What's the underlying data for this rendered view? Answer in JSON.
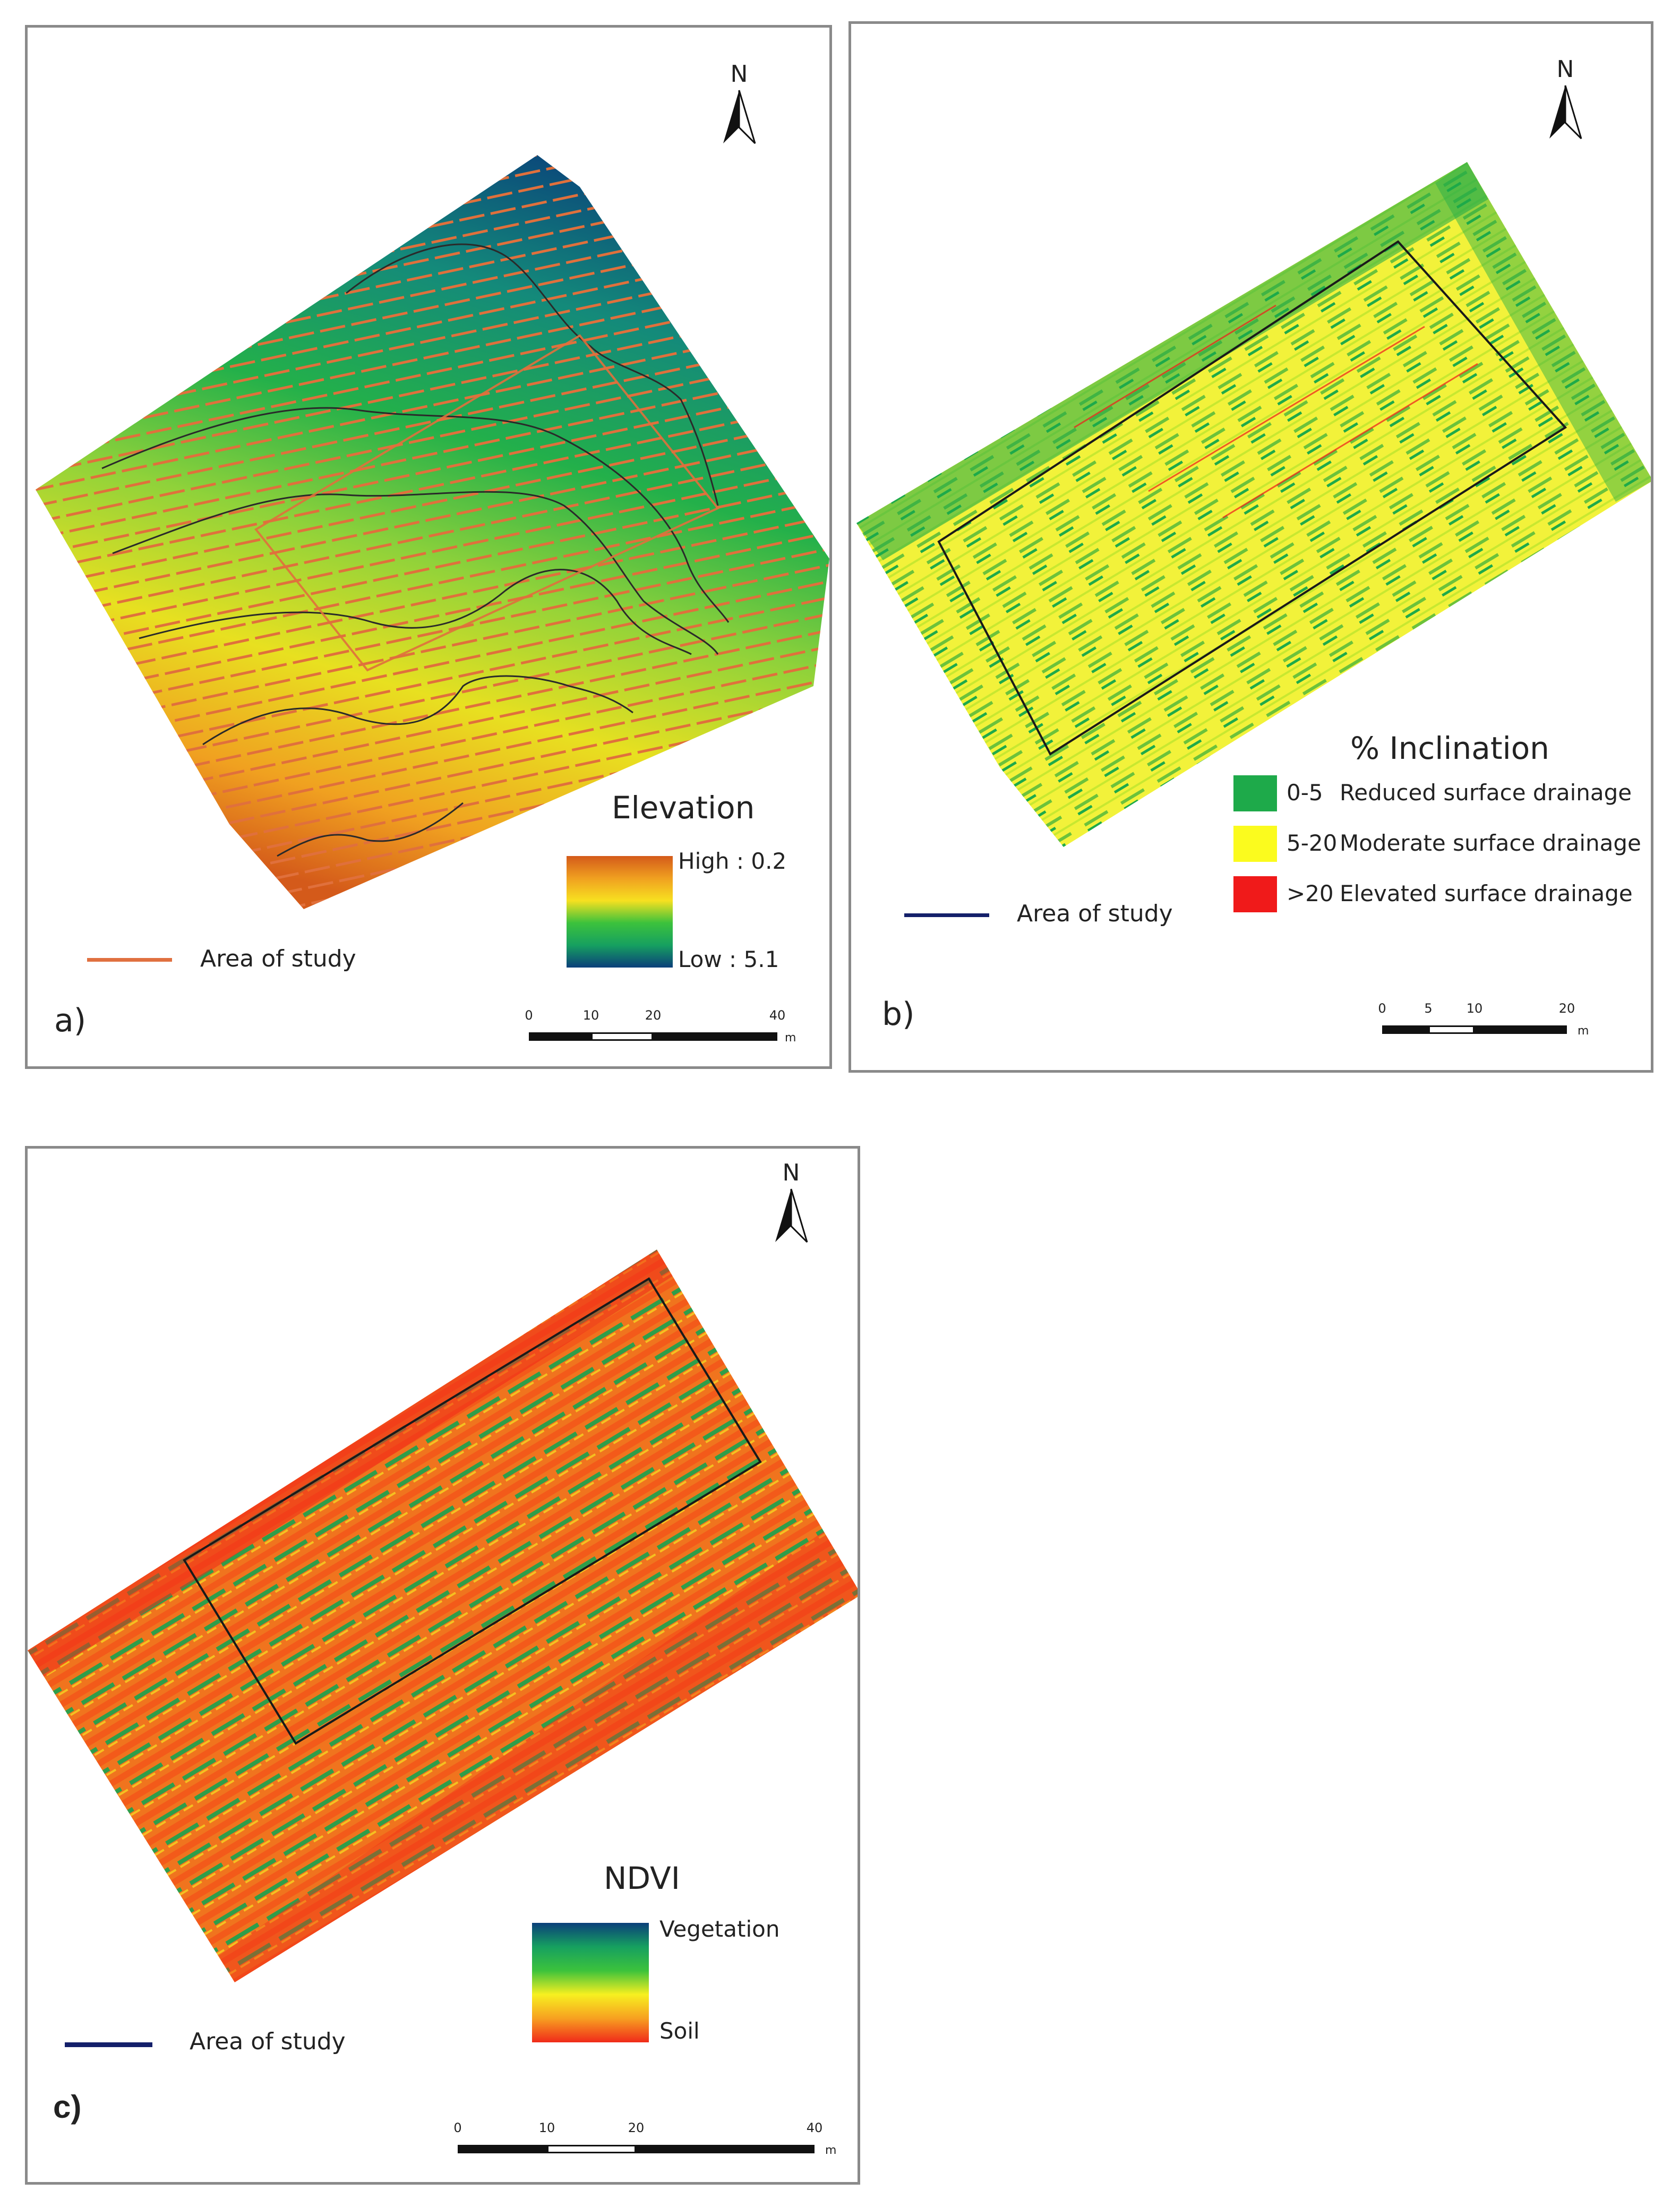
{
  "panels": {
    "a": {
      "tag": "a)",
      "north_label": "N",
      "legend_title": "Elevation",
      "high_label": "High : 0.2",
      "low_label": "Low : 5.1",
      "study_label": "Area of study",
      "study_line_color": "#e07040",
      "ramp_colors": [
        "#d45a1a",
        "#f0a020",
        "#f7e020",
        "#3cc23c",
        "#16a060",
        "#0b3f7a"
      ],
      "scale": {
        "ticks": [
          "0",
          "10",
          "20",
          "40"
        ],
        "unit": "m"
      }
    },
    "b": {
      "tag": "b)",
      "north_label": "N",
      "legend_title": "% Inclination",
      "classes": [
        {
          "range": "0-5",
          "description": "Reduced surface drainage",
          "color": "#1eaa4a"
        },
        {
          "range": "5-20",
          "description": "Moderate surface drainage",
          "color": "#fbfb1e"
        },
        {
          "range": ">20",
          "description": "Elevated surface drainage",
          "color": "#f01a1a"
        }
      ],
      "study_label": "Area of study",
      "study_line_color": "#14206a",
      "scale": {
        "ticks": [
          "0",
          "5",
          "10",
          "20"
        ],
        "unit": "m"
      }
    },
    "c": {
      "tag": "c)",
      "north_label": "N",
      "legend_title": "NDVI",
      "high_label": "Vegetation",
      "low_label": "Soil",
      "study_label": "Area of study",
      "study_line_color": "#14206a",
      "ramp_colors": [
        "#0b3f7a",
        "#16a060",
        "#3cc23c",
        "#f7f020",
        "#f7a020",
        "#f02a1a"
      ],
      "scale": {
        "ticks": [
          "0",
          "10",
          "20",
          "40"
        ],
        "unit": "m"
      }
    }
  }
}
